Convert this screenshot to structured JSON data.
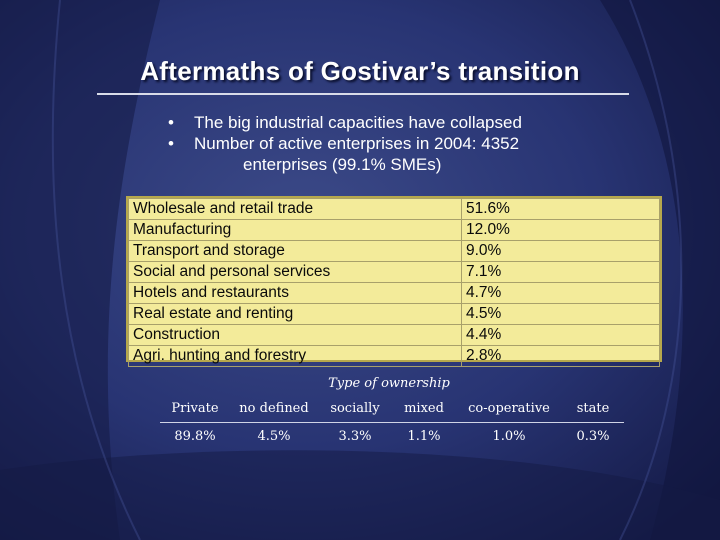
{
  "slide": {
    "title": "Aftermaths of Gostivar’s transition",
    "bullets": [
      {
        "dot": "•",
        "text": "The big industrial capacities have collapsed"
      },
      {
        "dot": "•",
        "text": "Number of active enterprises in 2004: 4352",
        "cont": "enterprises (99.1% SMEs)"
      }
    ],
    "colors": {
      "background": "#1b2356",
      "table_fill": "#f3eb9a",
      "text": "#ffffff"
    }
  },
  "sectors": [
    {
      "name": "Wholesale and retail trade",
      "share": "51.6%"
    },
    {
      "name": "Manufacturing",
      "share": "12.0%"
    },
    {
      "name": "Transport and storage",
      "share": "9.0%"
    },
    {
      "name": "Social and personal services",
      "share": "7.1%"
    },
    {
      "name": "Hotels and restaurants",
      "share": "4.7%"
    },
    {
      "name": "Real estate and renting",
      "share": "4.5%"
    },
    {
      "name": "Construction",
      "share": "4.4%"
    },
    {
      "name": "Agri. hunting and forestry",
      "share": "2.8%"
    }
  ],
  "ownership": {
    "caption": "Type of ownership",
    "headers": [
      "Private",
      "no defined",
      "socially",
      "mixed",
      "co-operative",
      "state"
    ],
    "values": [
      "89.8%",
      "4.5%",
      "3.3%",
      "1.1%",
      "1.0%",
      "0.3%"
    ]
  }
}
